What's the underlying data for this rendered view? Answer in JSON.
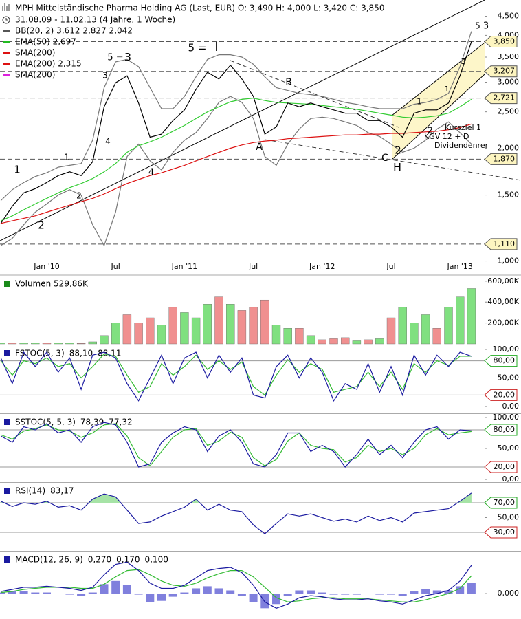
{
  "chart_data": [
    {
      "type": "line",
      "title": "MPH Mittelständische Pharma Holding AG (Last, EUR)  O: 3,490  H: 4,000  L: 3,420  C: 3,850",
      "subtitle": "31.08.09 - 11.02.13 (4 Jahre, 1 Woche)",
      "categories": [
        null,
        null,
        null,
        null,
        "Jan '10",
        null,
        null,
        null,
        null,
        null,
        "Jul",
        null,
        null,
        null,
        null,
        null,
        "Jan '11",
        null,
        null,
        null,
        null,
        null,
        "Jul",
        null,
        null,
        null,
        null,
        null,
        "Jan '12",
        null,
        null,
        null,
        null,
        null,
        "Jul",
        null,
        null,
        null,
        null,
        null,
        "Jan '13",
        null
      ],
      "log_scale": true,
      "ylim": [
        0.925,
        4.97
      ],
      "yticks": [
        {
          "value": 1.0,
          "label": "1,000"
        },
        {
          "value": 1.5,
          "label": "1,500"
        },
        {
          "value": 2.0,
          "label": "2,000"
        },
        {
          "value": 2.5,
          "label": "2,500"
        },
        {
          "value": 3.0,
          "label": "3,000"
        },
        {
          "value": 3.5,
          "label": "3,500"
        },
        {
          "value": 4.0,
          "label": "4,000"
        },
        {
          "value": 4.5,
          "label": "4,500"
        }
      ],
      "levels": [
        {
          "value": 3.85,
          "label": "3,850",
          "color": "#555555"
        },
        {
          "value": 3.207,
          "label": "3,207",
          "color": "#555555"
        },
        {
          "value": 2.721,
          "label": "2,721",
          "color": "#555555"
        },
        {
          "value": 1.87,
          "label": "1,870",
          "color": "#555555"
        },
        {
          "value": 1.11,
          "label": "1,110",
          "color": "#555555"
        }
      ],
      "legend": [
        {
          "text": "BB(20, 2)  3,612  2,827  2,042",
          "color": "#555555"
        },
        {
          "text": "EMA(50)  2,697",
          "color": "#22bb22"
        },
        {
          "text": "SMA(200)",
          "color": "#dd1111"
        },
        {
          "text": "EMA(200)  2,315",
          "color": "#dd1111"
        },
        {
          "text": "SMA(200)",
          "color": "#dd22dd"
        }
      ],
      "series": [
        {
          "color": "#777777",
          "values": [
            1.45,
            1.55,
            1.62,
            1.68,
            1.72,
            1.78,
            1.8,
            1.82,
            2.1,
            2.9,
            3.4,
            3.45,
            3.3,
            2.9,
            2.55,
            2.55,
            2.75,
            3.1,
            3.45,
            3.55,
            3.55,
            3.5,
            3.35,
            3.1,
            2.9,
            2.85,
            2.8,
            2.78,
            2.75,
            2.7,
            2.65,
            2.62,
            2.58,
            2.55,
            2.55,
            2.55,
            2.62,
            2.65,
            2.7,
            2.8,
            3.3,
            4.1
          ]
        },
        {
          "color": "#777777",
          "values": [
            1.1,
            1.15,
            1.25,
            1.35,
            1.42,
            1.5,
            1.55,
            1.5,
            1.25,
            1.1,
            1.35,
            1.9,
            2.05,
            1.85,
            1.75,
            1.95,
            2.1,
            2.2,
            2.4,
            2.65,
            2.75,
            2.65,
            2.4,
            1.9,
            1.8,
            2.05,
            2.25,
            2.4,
            2.42,
            2.4,
            2.35,
            2.3,
            2.2,
            2.15,
            2.05,
            1.95,
            2.0,
            2.1,
            2.25,
            2.35,
            2.2,
            2.05
          ]
        },
        {
          "color": "#dd1111",
          "values": [
            1.26,
            1.28,
            1.3,
            1.32,
            1.35,
            1.38,
            1.41,
            1.44,
            1.47,
            1.51,
            1.56,
            1.61,
            1.65,
            1.69,
            1.72,
            1.76,
            1.8,
            1.85,
            1.9,
            1.95,
            2.0,
            2.04,
            2.07,
            2.09,
            2.1,
            2.12,
            2.13,
            2.14,
            2.15,
            2.16,
            2.17,
            2.17,
            2.18,
            2.18,
            2.19,
            2.19,
            2.2,
            2.21,
            2.22,
            2.24,
            2.27,
            2.32
          ]
        },
        {
          "color": "#33cc33",
          "values": [
            1.28,
            1.32,
            1.37,
            1.42,
            1.47,
            1.52,
            1.57,
            1.61,
            1.66,
            1.73,
            1.82,
            1.95,
            2.03,
            2.08,
            2.14,
            2.22,
            2.3,
            2.4,
            2.5,
            2.58,
            2.66,
            2.7,
            2.72,
            2.68,
            2.65,
            2.64,
            2.63,
            2.62,
            2.6,
            2.58,
            2.56,
            2.54,
            2.51,
            2.48,
            2.45,
            2.42,
            2.41,
            2.42,
            2.44,
            2.48,
            2.58,
            2.7
          ]
        },
        {
          "color": "#000000",
          "values": [
            1.26,
            1.4,
            1.52,
            1.56,
            1.62,
            1.69,
            1.73,
            1.69,
            1.84,
            2.58,
            2.99,
            3.12,
            2.64,
            2.14,
            2.18,
            2.37,
            2.53,
            2.87,
            3.19,
            3.06,
            3.33,
            3.06,
            2.75,
            2.18,
            2.28,
            2.64,
            2.58,
            2.64,
            2.58,
            2.53,
            2.48,
            2.48,
            2.37,
            2.37,
            2.28,
            2.14,
            2.48,
            2.53,
            2.53,
            2.64,
            3.12,
            3.85
          ]
        }
      ],
      "annotations": [
        {
          "text": "1",
          "color": "#1e90d0"
        },
        {
          "text": "2",
          "color": "#1e90d0"
        },
        {
          "text": "1",
          "color": "#9a1a9a"
        },
        {
          "text": "2",
          "color": "#9a1a9a"
        },
        {
          "text": "3",
          "color": "#9a1a9a"
        },
        {
          "text": "4",
          "color": "#9a1a9a"
        },
        {
          "text": "5 =",
          "color": "#9a1a9a"
        },
        {
          "text": "3",
          "color": "#1e90d0"
        },
        {
          "text": "4",
          "color": "#1e90d0"
        },
        {
          "text": "5 =",
          "color": "#1e90d0"
        },
        {
          "text": "I",
          "color": "#1a3aa0"
        },
        {
          "text": "A",
          "color": "#000000"
        },
        {
          "text": "B",
          "color": "#000000"
        },
        {
          "text": "C",
          "color": "#000000"
        },
        {
          "text": "2",
          "color": "#1e90d0"
        },
        {
          "text": "H",
          "color": "#1a3aa0"
        },
        {
          "text": "1",
          "color": "#9a1a9a"
        },
        {
          "text": "2",
          "color": "#9a1a9a"
        },
        {
          "text": "1",
          "color": "#a01a1a"
        },
        {
          "text": "3",
          "color": "#a01a1a"
        },
        {
          "text": "5",
          "color": "#c0208a"
        },
        {
          "text": "3",
          "color": "#9a1a9a"
        },
        {
          "text": "Kursziel 1",
          "color": "#000000"
        },
        {
          "text": "KGV 12 + D",
          "color": "#000000"
        },
        {
          "text": "Dividendenrer",
          "color": "#000000"
        }
      ]
    },
    {
      "type": "bar",
      "legend": [
        {
          "text": "Volumen  529,86K",
          "color": "#1a8a1a"
        }
      ],
      "ylim": [
        0,
        645
      ],
      "yticks": [
        {
          "value": 200,
          "label": "200,00K"
        },
        {
          "value": 400,
          "label": "400,00K"
        },
        {
          "value": 600,
          "label": "600,00K"
        }
      ],
      "values": [
        10,
        10,
        10,
        10,
        10,
        10,
        10,
        5,
        20,
        80,
        200,
        280,
        200,
        250,
        180,
        350,
        300,
        250,
        380,
        450,
        380,
        320,
        350,
        420,
        180,
        150,
        150,
        80,
        40,
        50,
        60,
        30,
        40,
        50,
        250,
        350,
        200,
        280,
        150,
        350,
        450,
        530
      ],
      "colors": [
        "#80e080",
        "#f09090",
        "#80e080",
        "#80e080",
        "#f09090",
        "#80e080",
        "#80e080",
        "#f09090",
        "#80e080",
        "#80e080",
        "#80e080",
        "#f09090",
        "#f09090",
        "#f09090",
        "#80e080",
        "#f09090",
        "#80e080",
        "#80e080",
        "#80e080",
        "#f09090",
        "#80e080",
        "#f09090",
        "#f09090",
        "#f09090",
        "#80e080",
        "#80e080",
        "#f09090",
        "#80e080",
        "#f09090",
        "#f09090",
        "#f09090",
        "#80e080",
        "#f09090",
        "#80e080",
        "#f09090",
        "#80e080",
        "#80e080",
        "#80e080",
        "#f09090",
        "#80e080",
        "#80e080",
        "#80e080"
      ]
    },
    {
      "type": "line",
      "legend": [
        {
          "text": "FSTOC(5, 3)",
          "color": "#1a1aa0"
        },
        {
          "text": "88,10",
          "color": "#1a1aa0"
        },
        {
          "text": "88,11",
          "color": "#22aa22"
        }
      ],
      "ylim": [
        -10.8,
        106
      ],
      "yticks": [
        {
          "value": 0,
          "label": "0,00"
        },
        {
          "value": 50,
          "label": "50,00"
        },
        {
          "value": 100,
          "label": "100,00"
        }
      ],
      "levels": [
        {
          "value": 80,
          "label": "80,00",
          "color": "#22aa22"
        },
        {
          "value": 20,
          "label": "20,00",
          "color": "#cc2222"
        }
      ],
      "series": [
        {
          "color": "#33bb33",
          "values": [
            80,
            55,
            80,
            75,
            85,
            70,
            75,
            50,
            70,
            92,
            88,
            55,
            25,
            35,
            75,
            55,
            70,
            90,
            65,
            80,
            65,
            78,
            35,
            20,
            55,
            82,
            60,
            75,
            65,
            25,
            30,
            35,
            60,
            35,
            60,
            30,
            75,
            60,
            80,
            72,
            88,
            88.11
          ]
        },
        {
          "color": "#1a1aa0",
          "values": [
            85,
            40,
            95,
            70,
            95,
            60,
            85,
            30,
            90,
            95,
            85,
            40,
            10,
            50,
            90,
            40,
            85,
            95,
            50,
            90,
            60,
            85,
            20,
            15,
            70,
            90,
            50,
            85,
            60,
            10,
            40,
            30,
            75,
            25,
            70,
            20,
            90,
            55,
            90,
            70,
            95,
            88.1
          ]
        }
      ]
    },
    {
      "type": "line",
      "legend": [
        {
          "text": "SSTOC(5, 5, 3)",
          "color": "#1a1aa0"
        },
        {
          "text": "78,39",
          "color": "#1a1aa0"
        },
        {
          "text": "77,32",
          "color": "#22aa22"
        }
      ],
      "ylim": [
        -3.3,
        104.4
      ],
      "yticks": [
        {
          "value": 0,
          "label": "0,00"
        },
        {
          "value": 50,
          "label": "50,00"
        },
        {
          "value": 100,
          "label": "100,00"
        }
      ],
      "levels": [
        {
          "value": 80,
          "label": "80,00",
          "color": "#22aa22"
        },
        {
          "value": 20,
          "label": "20,00",
          "color": "#cc2222"
        }
      ],
      "series": [
        {
          "color": "#33bb33",
          "values": [
            72,
            65,
            78,
            82,
            88,
            80,
            78,
            68,
            75,
            88,
            90,
            70,
            35,
            22,
            45,
            68,
            80,
            82,
            55,
            62,
            76,
            68,
            35,
            22,
            32,
            62,
            75,
            55,
            50,
            48,
            28,
            35,
            55,
            45,
            50,
            40,
            50,
            72,
            82,
            72,
            75,
            77.32
          ]
        },
        {
          "color": "#1a1aa0",
          "values": [
            70,
            60,
            85,
            80,
            90,
            75,
            80,
            60,
            85,
            92,
            88,
            60,
            20,
            25,
            60,
            75,
            85,
            80,
            45,
            70,
            80,
            60,
            25,
            20,
            40,
            75,
            75,
            45,
            55,
            45,
            20,
            40,
            65,
            40,
            55,
            35,
            60,
            80,
            85,
            65,
            80,
            78.39
          ]
        }
      ]
    },
    {
      "type": "line",
      "legend": [
        {
          "text": "RSI(14)",
          "color": "#1a1aa0"
        },
        {
          "text": "83,17",
          "color": "#1a1aa0"
        }
      ],
      "ylim": [
        5.8,
        96
      ],
      "yticks": [
        {
          "value": 50,
          "label": "50,00"
        }
      ],
      "levels": [
        {
          "value": 70,
          "label": "70,00",
          "color": "#22aa22"
        },
        {
          "value": 30,
          "label": "30,00",
          "color": "#cc2222"
        }
      ],
      "level_fill": true,
      "series": [
        {
          "color": "#1a1aa0",
          "values": [
            72,
            65,
            70,
            68,
            72,
            64,
            66,
            60,
            75,
            82,
            78,
            60,
            42,
            44,
            52,
            58,
            64,
            75,
            60,
            68,
            60,
            58,
            40,
            28,
            42,
            55,
            52,
            55,
            50,
            45,
            48,
            44,
            52,
            46,
            50,
            44,
            56,
            58,
            60,
            62,
            72,
            83.17
          ]
        }
      ]
    },
    {
      "type": "line",
      "legend": [
        {
          "text": "MACD(12, 26, 9)",
          "color": "#1a1aa0"
        },
        {
          "text": "0,270",
          "color": "#1a1aa0"
        },
        {
          "text": "0,170",
          "color": "#22aa22"
        },
        {
          "text": "0,100",
          "color": "#7777cc"
        }
      ],
      "ylim": [
        -0.243,
        0.395
      ],
      "yticks": [
        {
          "value": 0,
          "label": "0,000"
        }
      ],
      "series": [
        {
          "type": "bar",
          "color": "#8080dd",
          "values": [
            0.01,
            0.02,
            0.02,
            0.01,
            0.01,
            0,
            -0.01,
            -0.02,
            0.01,
            0.09,
            0.12,
            0.08,
            -0.01,
            -0.08,
            -0.07,
            -0.03,
            0.01,
            0.05,
            0.07,
            0.05,
            0.03,
            -0.02,
            -0.08,
            -0.14,
            -0.1,
            -0.02,
            0.03,
            0.03,
            0.01,
            -0.01,
            -0.01,
            -0.01,
            0,
            -0.01,
            -0.01,
            -0.02,
            0.02,
            0.04,
            0.03,
            0.03,
            0.07,
            0.1
          ]
        },
        {
          "color": "#33bb33",
          "values": [
            0.01,
            0.02,
            0.04,
            0.05,
            0.06,
            0.06,
            0.06,
            0.05,
            0.05,
            0.09,
            0.16,
            0.22,
            0.23,
            0.18,
            0.12,
            0.08,
            0.07,
            0.1,
            0.15,
            0.19,
            0.22,
            0.22,
            0.16,
            0.06,
            -0.04,
            -0.08,
            -0.07,
            -0.05,
            -0.04,
            -0.04,
            -0.05,
            -0.05,
            -0.05,
            -0.06,
            -0.07,
            -0.08,
            -0.08,
            -0.06,
            -0.03,
            0.0,
            0.05,
            0.17
          ]
        },
        {
          "color": "#1a1aa0",
          "values": [
            0.02,
            0.04,
            0.06,
            0.06,
            0.07,
            0.06,
            0.05,
            0.03,
            0.06,
            0.18,
            0.28,
            0.3,
            0.22,
            0.1,
            0.05,
            0.05,
            0.08,
            0.15,
            0.22,
            0.24,
            0.25,
            0.2,
            0.08,
            -0.08,
            -0.14,
            -0.1,
            -0.04,
            -0.02,
            -0.03,
            -0.05,
            -0.06,
            -0.06,
            -0.05,
            -0.07,
            -0.08,
            -0.1,
            -0.06,
            -0.02,
            0.0,
            0.03,
            0.12,
            0.27
          ]
        }
      ]
    }
  ]
}
